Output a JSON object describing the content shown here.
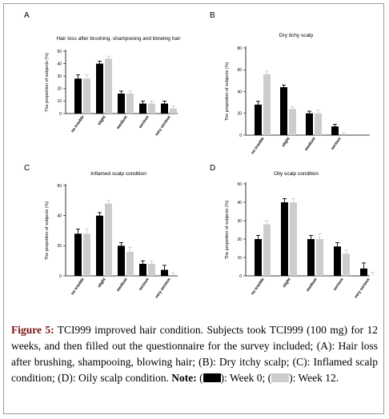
{
  "colors": {
    "week0": "#000000",
    "week12": "#cccccc",
    "accent": "#7a1010"
  },
  "y_axis_label": "The proportion of subjects (%)",
  "chart_data": [
    {
      "type": "bar",
      "letter": "A",
      "title": "Hair loss after brushing, shampooing and blowing hair",
      "ylabel": "The proportion of subjects (%)",
      "ylim": [
        0,
        50
      ],
      "yticks": [
        0,
        10,
        20,
        30,
        40,
        50
      ],
      "categories": [
        "no trouble",
        "slight",
        "medium",
        "serious",
        "very serious"
      ],
      "series": [
        {
          "key": "week0",
          "values": [
            28,
            40,
            16,
            8,
            8
          ],
          "err": [
            3,
            2,
            2,
            2,
            2
          ]
        },
        {
          "key": "week12",
          "values": [
            28,
            44,
            16,
            8,
            4
          ],
          "err": [
            3,
            2,
            2,
            2,
            2
          ]
        }
      ]
    },
    {
      "type": "bar",
      "letter": "B",
      "title": "Dry itchy scalp",
      "ylabel": "The proportion of subjects (%)",
      "ylim": [
        0,
        80
      ],
      "yticks": [
        0,
        20,
        40,
        60,
        80
      ],
      "categories": [
        "no trouble",
        "slight",
        "medium",
        "serious"
      ],
      "series": [
        {
          "key": "week0",
          "values": [
            28,
            44,
            20,
            8
          ],
          "err": [
            3,
            2,
            2,
            2
          ]
        },
        {
          "key": "week12",
          "values": [
            56,
            24,
            20,
            0
          ],
          "err": [
            3,
            2,
            3,
            2
          ]
        }
      ]
    },
    {
      "type": "bar",
      "letter": "C",
      "title": "Inflamed scalp condition",
      "ylabel": "The proportion of subjects (%)",
      "ylim": [
        0,
        60
      ],
      "yticks": [
        0,
        20,
        40,
        60
      ],
      "categories": [
        "no trouble",
        "slight",
        "medium",
        "serious",
        "very serious"
      ],
      "series": [
        {
          "key": "week0",
          "values": [
            28,
            40,
            20,
            8,
            4
          ],
          "err": [
            3,
            2,
            2,
            2,
            3
          ]
        },
        {
          "key": "week12",
          "values": [
            28,
            48,
            16,
            8,
            0
          ],
          "err": [
            3,
            2,
            3,
            2,
            2
          ]
        }
      ]
    },
    {
      "type": "bar",
      "letter": "D",
      "title": "Oily scalp condition",
      "ylabel": "The proportion of subjects (%)",
      "ylim": [
        0,
        50
      ],
      "yticks": [
        0,
        10,
        20,
        30,
        40,
        50
      ],
      "categories": [
        "no trouble",
        "slight",
        "medium",
        "serious",
        "very serious"
      ],
      "series": [
        {
          "key": "week0",
          "values": [
            20,
            40,
            20,
            16,
            4
          ],
          "err": [
            2,
            2,
            2,
            2,
            3
          ]
        },
        {
          "key": "week12",
          "values": [
            28,
            40,
            20,
            12,
            0
          ],
          "err": [
            2,
            2,
            3,
            2,
            2
          ]
        }
      ]
    }
  ],
  "caption": {
    "figure_label": "Figure 5:",
    "text": "TCI999 improved hair condition. Subjects took TCI999 (100 mg) for 12 weeks, and then filled out the questionnaire for the survey included; (A): Hair loss after brushing, shampooing, blowing hair; (B): Dry itchy scalp; (C): Inflamed scalp condition; (D): Oily scalp condition.",
    "note_label": "Note:",
    "legend_open": "(",
    "week0_label": "): Week 0; (",
    "week12_label": "): Week 12."
  }
}
